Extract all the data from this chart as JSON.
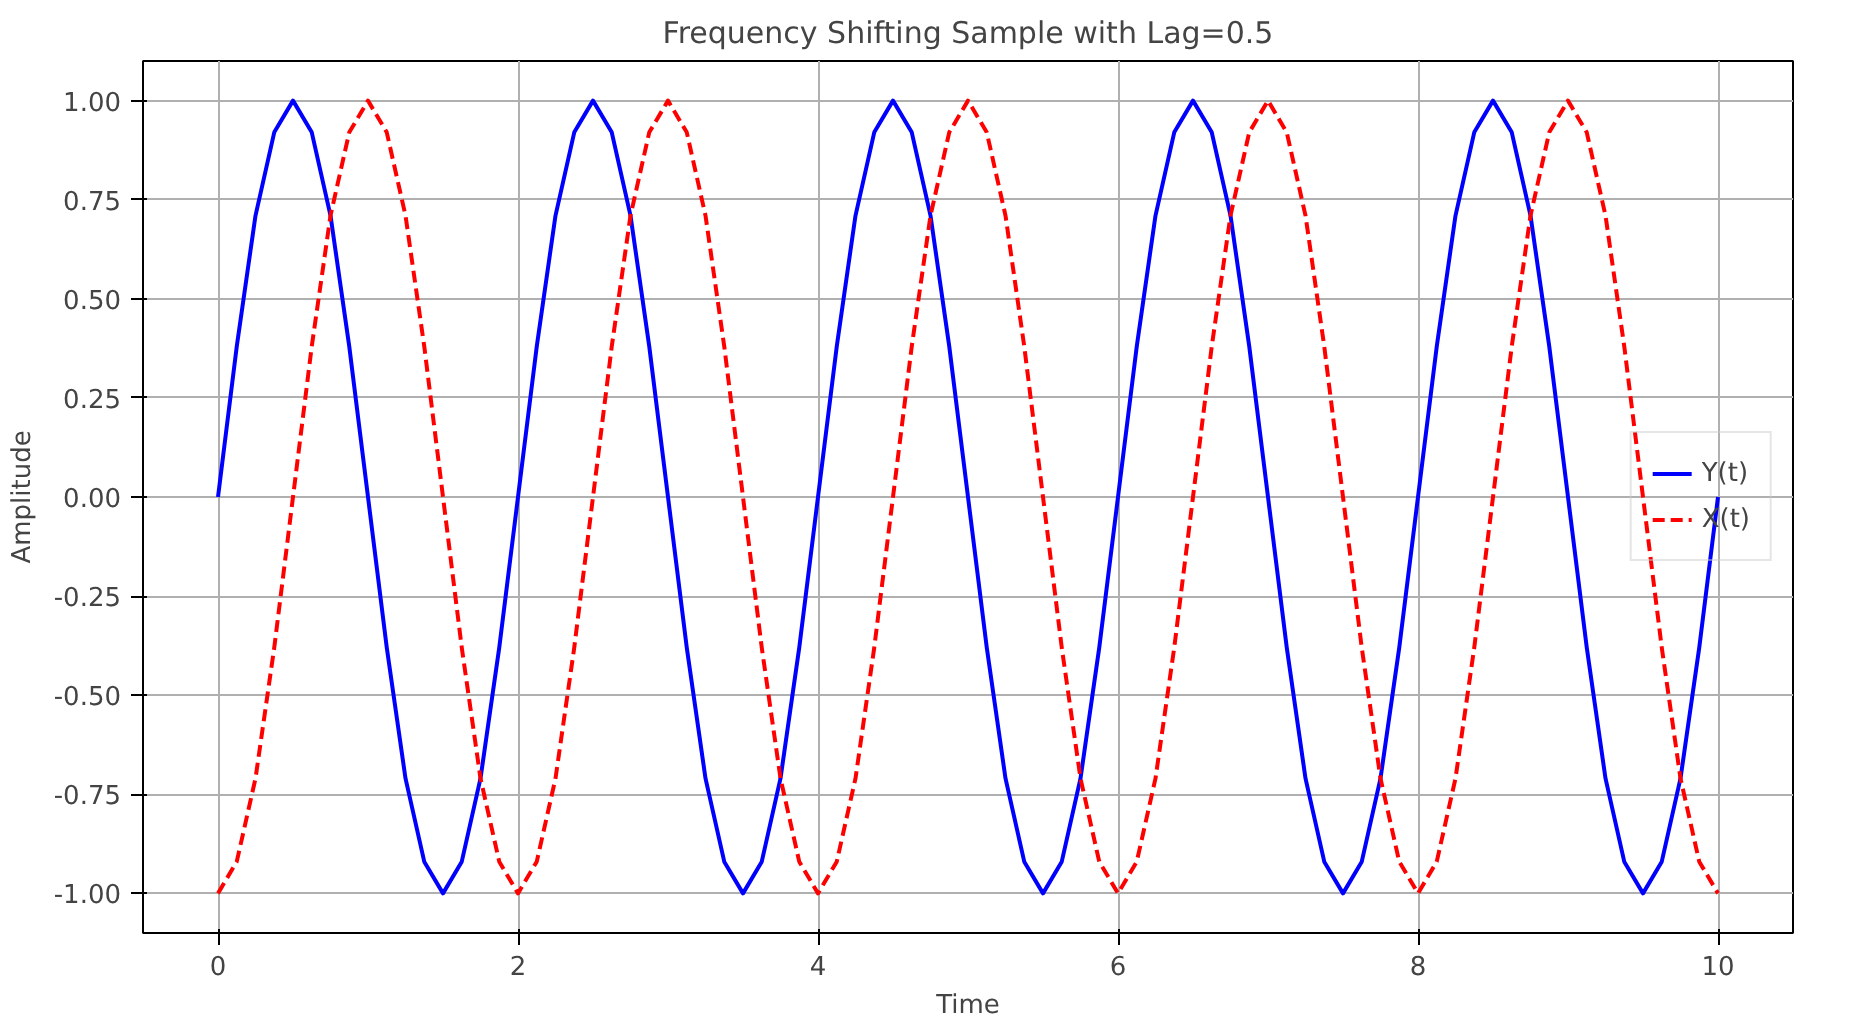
{
  "chart_data": {
    "type": "line",
    "title": "Frequency Shifting Sample with Lag=0.5",
    "xlabel": "Time",
    "ylabel": "Amplitude",
    "x": [
      0,
      0.125,
      0.25,
      0.375,
      0.5,
      0.625,
      0.75,
      0.875,
      1,
      1.125,
      1.25,
      1.375,
      1.5,
      1.625,
      1.75,
      1.875,
      2,
      2.125,
      2.25,
      2.375,
      2.5,
      2.625,
      2.75,
      2.875,
      3,
      3.125,
      3.25,
      3.375,
      3.5,
      3.625,
      3.75,
      3.875,
      4,
      4.125,
      4.25,
      4.375,
      4.5,
      4.625,
      4.75,
      4.875,
      5,
      5.125,
      5.25,
      5.375,
      5.5,
      5.625,
      5.75,
      5.875,
      6,
      6.125,
      6.25,
      6.375,
      6.5,
      6.625,
      6.75,
      6.875,
      7,
      7.125,
      7.25,
      7.375,
      7.5,
      7.625,
      7.75,
      7.875,
      8,
      8.125,
      8.25,
      8.375,
      8.5,
      8.625,
      8.75,
      8.875,
      9,
      9.125,
      9.25,
      9.375,
      9.5,
      9.625,
      9.75,
      9.875,
      10
    ],
    "series": [
      {
        "name": "Y(t)",
        "color": "#0000ff",
        "line_style": "solid",
        "values": [
          0,
          0.38,
          0.71,
          0.92,
          1,
          0.92,
          0.71,
          0.38,
          0,
          -0.38,
          -0.71,
          -0.92,
          -1,
          -0.92,
          -0.71,
          -0.38,
          0,
          0.38,
          0.71,
          0.92,
          1,
          0.92,
          0.71,
          0.38,
          0,
          -0.38,
          -0.71,
          -0.92,
          -1,
          -0.92,
          -0.71,
          -0.38,
          0,
          0.38,
          0.71,
          0.92,
          1,
          0.92,
          0.71,
          0.38,
          0,
          -0.38,
          -0.71,
          -0.92,
          -1,
          -0.92,
          -0.71,
          -0.38,
          0,
          0.38,
          0.71,
          0.92,
          1,
          0.92,
          0.71,
          0.38,
          0,
          -0.38,
          -0.71,
          -0.92,
          -1,
          -0.92,
          -0.71,
          -0.38,
          0,
          0.38,
          0.71,
          0.92,
          1,
          0.92,
          0.71,
          0.38,
          0,
          -0.38,
          -0.71,
          -0.92,
          -1,
          -0.92,
          -0.71,
          -0.38,
          0
        ]
      },
      {
        "name": "X(t)",
        "color": "#ff0000",
        "line_style": "dashed",
        "values": [
          -1,
          -0.92,
          -0.71,
          -0.38,
          0,
          0.38,
          0.71,
          0.92,
          1,
          0.92,
          0.71,
          0.38,
          0,
          -0.38,
          -0.71,
          -0.92,
          -1,
          -0.92,
          -0.71,
          -0.38,
          0,
          0.38,
          0.71,
          0.92,
          1,
          0.92,
          0.71,
          0.38,
          0,
          -0.38,
          -0.71,
          -0.92,
          -1,
          -0.92,
          -0.71,
          -0.38,
          0,
          0.38,
          0.71,
          0.92,
          1,
          0.92,
          0.71,
          0.38,
          0,
          -0.38,
          -0.71,
          -0.92,
          -1,
          -0.92,
          -0.71,
          -0.38,
          0,
          0.38,
          0.71,
          0.92,
          1,
          0.92,
          0.71,
          0.38,
          0,
          -0.38,
          -0.71,
          -0.92,
          -1,
          -0.92,
          -0.71,
          -0.38,
          0,
          0.38,
          0.71,
          0.92,
          1,
          0.92,
          0.71,
          0.38,
          0,
          -0.38,
          -0.71,
          -0.92,
          -1
        ]
      }
    ],
    "xlim": [
      -0.5,
      10.5
    ],
    "ylim": [
      -1.1,
      1.1
    ],
    "xticks": [
      0,
      2,
      4,
      6,
      8,
      10
    ],
    "yticks": [
      {
        "value": -1,
        "label": "-1.00"
      },
      {
        "value": -0.75,
        "label": "-0.75"
      },
      {
        "value": -0.5,
        "label": "-0.50"
      },
      {
        "value": -0.25,
        "label": "-0.25"
      },
      {
        "value": 0,
        "label": "0.00"
      },
      {
        "value": 0.25,
        "label": "0.25"
      },
      {
        "value": 0.5,
        "label": "0.50"
      },
      {
        "value": 0.75,
        "label": "0.75"
      },
      {
        "value": 1,
        "label": "1.00"
      }
    ],
    "grid": true,
    "legend": "right"
  }
}
